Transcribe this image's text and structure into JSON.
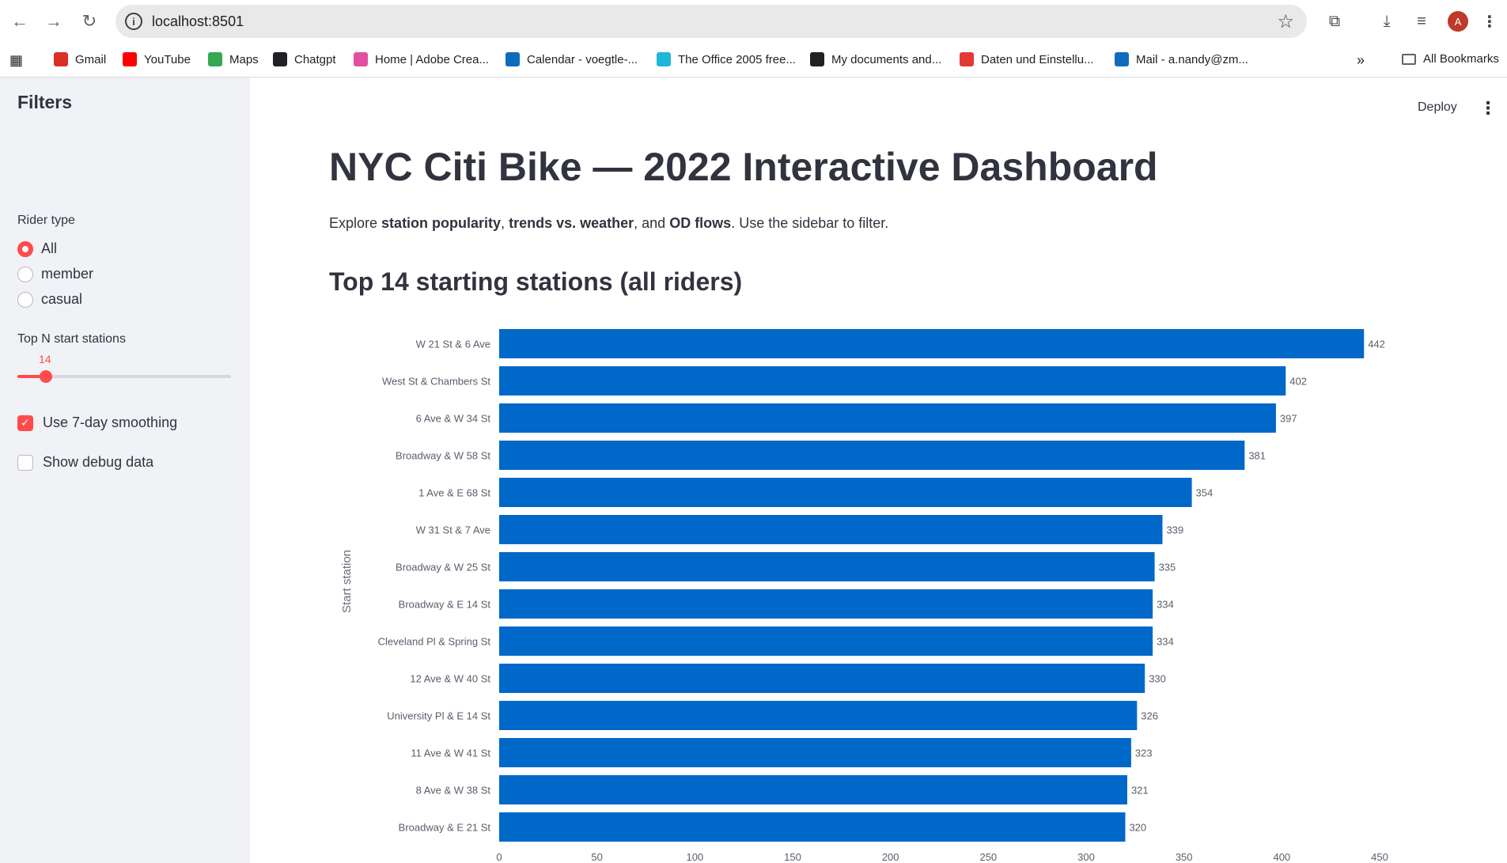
{
  "browser": {
    "url": "localhost:8501",
    "bookmarks": [
      {
        "label": "Gmail",
        "icon": "gmail-icon",
        "color": "#d93025"
      },
      {
        "label": "YouTube",
        "icon": "youtube-icon",
        "color": "#ff0000"
      },
      {
        "label": "Maps",
        "icon": "maps-icon",
        "color": "#34a853"
      },
      {
        "label": "Chatgpt",
        "icon": "chatgpt-icon",
        "color": "#202124"
      },
      {
        "label": "Home | Adobe Crea...",
        "icon": "adobe-icon",
        "color": "#e34fa0"
      },
      {
        "label": "Calendar - voegtle-...",
        "icon": "outlook-icon",
        "color": "#0f6cbd"
      },
      {
        "label": "The Office 2005 free...",
        "icon": "play-icon",
        "color": "#1fb6d8"
      },
      {
        "label": "My documents and...",
        "icon": "globe-icon",
        "color": "#202124"
      },
      {
        "label": "Daten und Einstellu...",
        "icon": "warning-icon",
        "color": "#e53935"
      },
      {
        "label": "Mail - a.nandy@zm...",
        "icon": "outlook-icon",
        "color": "#0f6cbd"
      }
    ],
    "more": "»",
    "all_bookmarks": "All Bookmarks",
    "avatar_letter": "A"
  },
  "sidebar": {
    "title": "Filters",
    "rider_type_label": "Rider type",
    "rider_options": [
      "All",
      "member",
      "casual"
    ],
    "rider_selected": "All",
    "topn_label": "Top N start stations",
    "topn_value": "14",
    "smoothing_label": "Use 7-day smoothing",
    "smoothing_checked": true,
    "debug_label": "Show debug data",
    "debug_checked": false
  },
  "header": {
    "deploy": "Deploy",
    "menu": "⋮"
  },
  "main": {
    "title": "NYC Citi Bike — 2022 Interactive Dashboard",
    "subtitle_parts": [
      "Explore ",
      "station popularity",
      ", ",
      "trends vs. weather",
      ", and ",
      "OD flows",
      ". Use the sidebar to filter."
    ],
    "section_title": "Top 14 starting stations (all riders)"
  },
  "chart_data": {
    "type": "bar",
    "orientation": "horizontal",
    "ylabel": "Start station",
    "categories": [
      "W 21 St & 6 Ave",
      "West St & Chambers St",
      "6 Ave & W 34 St",
      "Broadway & W 58 St",
      "1 Ave & E 68 St",
      "W 31 St & 7 Ave",
      "Broadway & W 25 St",
      "Broadway & E 14 St",
      "Cleveland Pl & Spring St",
      "12 Ave & W 40 St",
      "University Pl & E 14 St",
      "11 Ave & W 41 St",
      "8 Ave & W 38 St",
      "Broadway & E 21 St"
    ],
    "values": [
      442,
      402,
      397,
      381,
      354,
      339,
      335,
      334,
      334,
      330,
      326,
      323,
      321,
      320
    ],
    "x_ticks": [
      "0",
      "50",
      "100",
      "150",
      "200",
      "250",
      "300",
      "350",
      "400",
      "450"
    ],
    "xlim": [
      0,
      450
    ],
    "bar_color": "#0068c9",
    "grid": false
  }
}
